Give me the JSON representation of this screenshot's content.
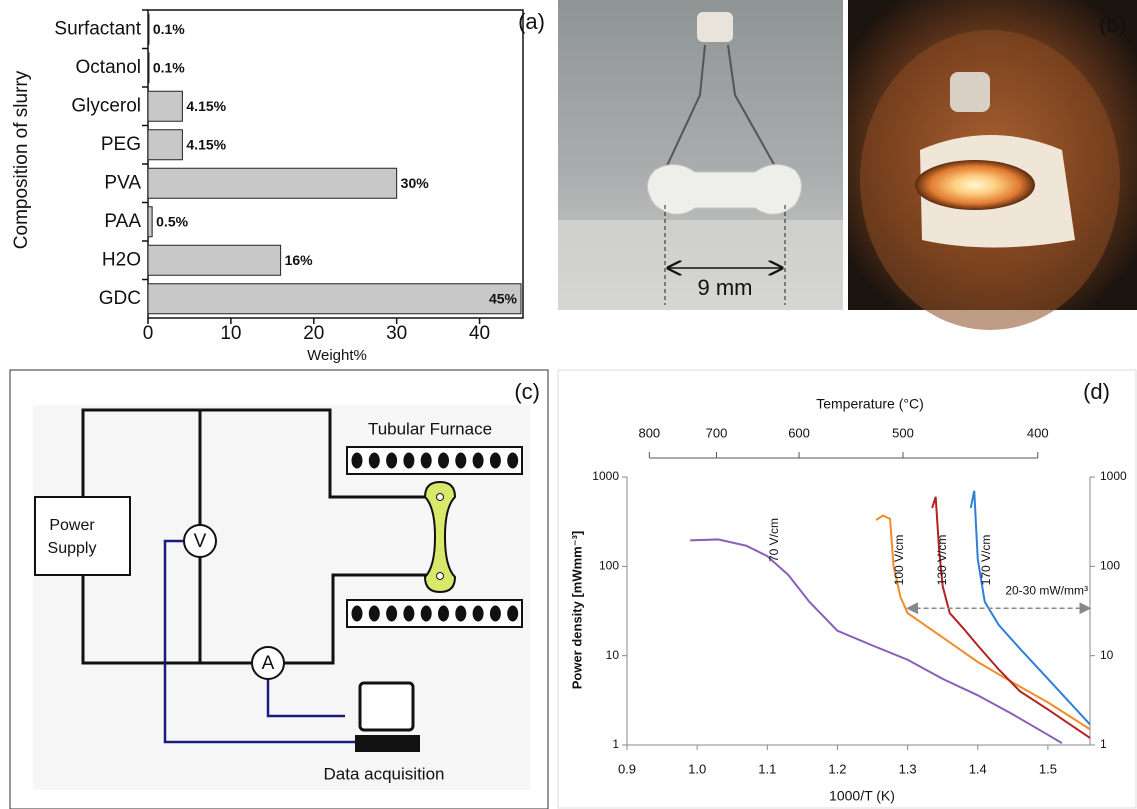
{
  "chart_data": [
    {
      "type": "bar",
      "orientation": "horizontal",
      "panel_label": "(a)",
      "xlabel": "Weight%",
      "ylabel": "Composition of slurry",
      "categories": [
        "Surfactant",
        "Octanol",
        "Glycerol",
        "PEG",
        "PVA",
        "PAA",
        "H2O",
        "GDC"
      ],
      "values": [
        0.1,
        0.1,
        4.15,
        4.15,
        30,
        0.5,
        16,
        45
      ],
      "value_labels": [
        "0.1%",
        "0.1%",
        "4.15%",
        "4.15%",
        "30%",
        "0.5%",
        "16%",
        "45%"
      ],
      "color": "#c8c8c8",
      "xlim": [
        0,
        45
      ],
      "xticks": [
        0,
        10,
        20,
        30,
        40
      ]
    },
    {
      "type": "line",
      "panel_label": "(d)",
      "xlabel": "1000/T (K)",
      "ylabel": "Power density [mWmm⁻³]",
      "x2label": "Temperature (°C)",
      "log_y": true,
      "ylim": [
        1,
        1000
      ],
      "yticks": [
        1,
        10,
        100,
        1000
      ],
      "xlim": [
        0.9,
        1.56
      ],
      "xticks": [
        0.9,
        {
          "value": 1,
          "label": "1.0"
        },
        1.1,
        1.2,
        1.3,
        1.4,
        1.5
      ],
      "x2ticks": [
        800,
        700,
        600,
        500,
        400
      ],
      "series": [
        {
          "name": "70 V/cm",
          "color": "#8a5fb8",
          "x": [
            0.99,
            1.03,
            1.07,
            1.1,
            1.13,
            1.16,
            1.2,
            1.25,
            1.3,
            1.35,
            1.4,
            1.45,
            1.5,
            1.52
          ],
          "values": [
            195,
            200,
            170,
            130,
            80,
            40,
            19,
            13,
            9,
            5.5,
            3.6,
            2.2,
            1.3,
            1.05
          ]
        },
        {
          "name": "100 V/cm",
          "color": "#f28c28",
          "x": [
            1.255,
            1.265,
            1.275,
            1.28,
            1.29,
            1.3,
            1.35,
            1.4,
            1.45,
            1.5,
            1.56
          ],
          "values": [
            330,
            370,
            340,
            100,
            45,
            30,
            16,
            8.5,
            5,
            3,
            1.5
          ]
        },
        {
          "name": "130 V/cm",
          "color": "#b22222",
          "x": [
            1.335,
            1.34,
            1.345,
            1.35,
            1.36,
            1.38,
            1.4,
            1.43,
            1.46,
            1.5,
            1.56
          ],
          "values": [
            450,
            600,
            150,
            60,
            30,
            20,
            13,
            7,
            4,
            2.5,
            1.2
          ]
        },
        {
          "name": "170 V/cm",
          "color": "#2f7fd8",
          "x": [
            1.39,
            1.395,
            1.4,
            1.41,
            1.43,
            1.46,
            1.5,
            1.56
          ],
          "values": [
            450,
            700,
            120,
            40,
            22,
            12,
            5.5,
            1.7
          ]
        }
      ],
      "annotation": {
        "text": "20-30 mW/mm³",
        "x": [
          1.3,
          1.56
        ],
        "y": 34
      }
    }
  ],
  "photo_b": {
    "panel_label": "(b)",
    "scale_label": "9 mm"
  },
  "diagram_c": {
    "panel_label": "(c)",
    "furnace_label": "Tubular Furnace",
    "power_supply_label": [
      "Power",
      "Supply"
    ],
    "voltmeter_label": "V",
    "ammeter_label": "A",
    "computer_label": "Data acquisition"
  }
}
